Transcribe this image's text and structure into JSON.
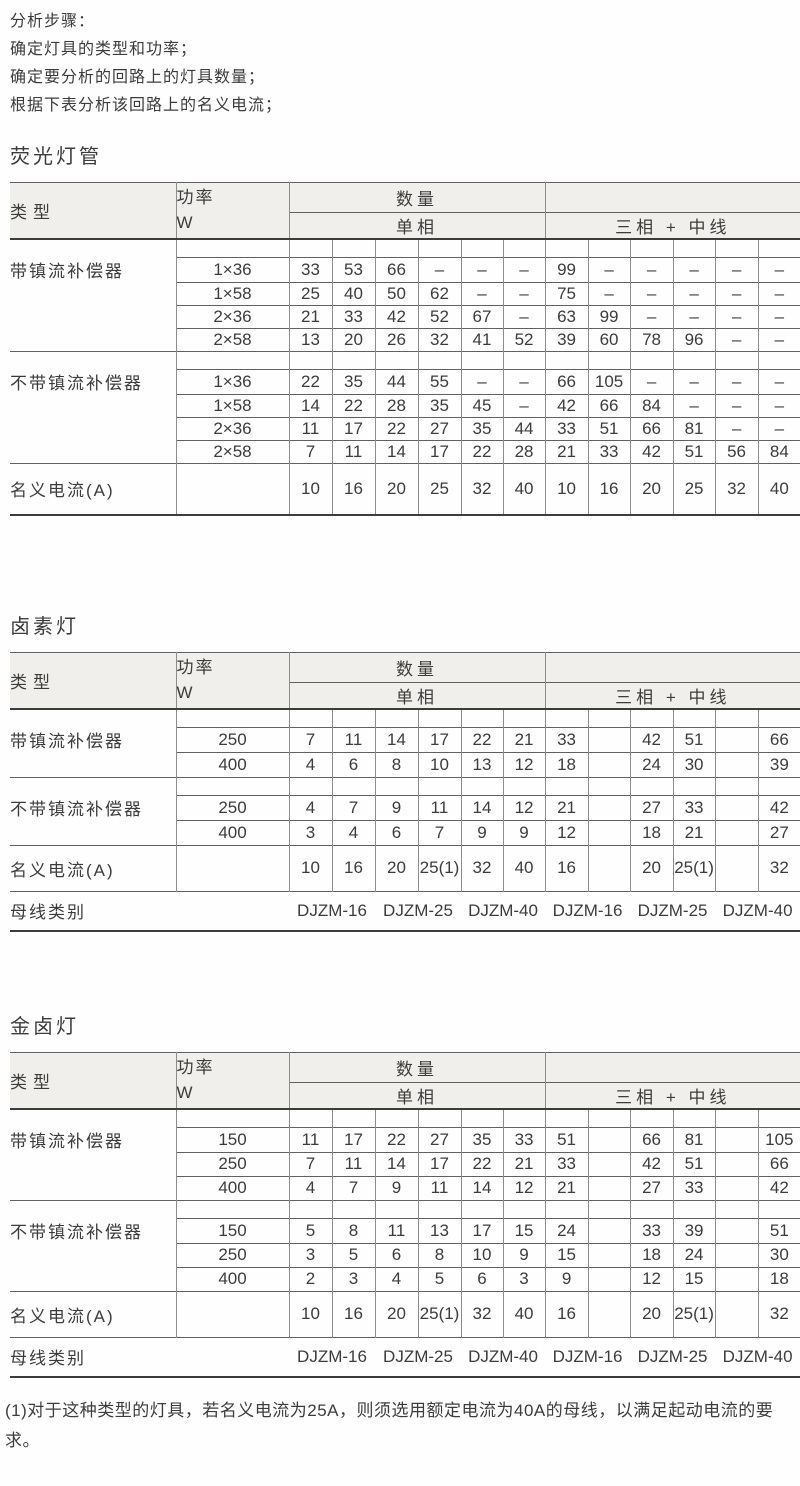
{
  "intro": {
    "lines": [
      "分析步骤：",
      "确定灯具的类型和功率；",
      "确定要分析的回路上的灯具数量；",
      "根据下表分析该回路上的名义电流；"
    ]
  },
  "labels": {
    "type": "类型",
    "power": "功率",
    "power_unit": "W",
    "quantity": "数量",
    "single_phase": "单相",
    "three_phase": "三相 + 中线",
    "nominal_current": "名义电流(A)",
    "busbar_class": "母线类别"
  },
  "tables": [
    {
      "title": "荧光灯管",
      "groups": [
        {
          "name": "带镇流补偿器",
          "rows": [
            {
              "power": "1×36",
              "single": [
                "33",
                "53",
                "66",
                "–",
                "–",
                "–"
              ],
              "three": [
                "99",
                "–",
                "–",
                "–",
                "–",
                "–"
              ]
            },
            {
              "power": "1×58",
              "single": [
                "25",
                "40",
                "50",
                "62",
                "–",
                "–"
              ],
              "three": [
                "75",
                "–",
                "–",
                "–",
                "–",
                "–"
              ]
            },
            {
              "power": "2×36",
              "single": [
                "21",
                "33",
                "42",
                "52",
                "67",
                "–"
              ],
              "three": [
                "63",
                "99",
                "–",
                "–",
                "–",
                "–"
              ]
            },
            {
              "power": "2×58",
              "single": [
                "13",
                "20",
                "26",
                "32",
                "41",
                "52"
              ],
              "three": [
                "39",
                "60",
                "78",
                "96",
                "–",
                "–"
              ]
            }
          ]
        },
        {
          "name": "不带镇流补偿器",
          "rows": [
            {
              "power": "1×36",
              "single": [
                "22",
                "35",
                "44",
                "55",
                "–",
                "–"
              ],
              "three": [
                "66",
                "105",
                "–",
                "–",
                "–",
                "–"
              ]
            },
            {
              "power": "1×58",
              "single": [
                "14",
                "22",
                "28",
                "35",
                "45",
                "–"
              ],
              "three": [
                "42",
                "66",
                "84",
                "–",
                "–",
                "–"
              ]
            },
            {
              "power": "2×36",
              "single": [
                "11",
                "17",
                "22",
                "27",
                "35",
                "44"
              ],
              "three": [
                "33",
                "51",
                "66",
                "81",
                "–",
                "–"
              ]
            },
            {
              "power": "2×58",
              "single": [
                "7",
                "11",
                "14",
                "17",
                "22",
                "28"
              ],
              "three": [
                "21",
                "33",
                "42",
                "51",
                "56",
                "84"
              ]
            }
          ]
        }
      ],
      "nominal": {
        "single": [
          "10",
          "16",
          "20",
          "25",
          "32",
          "40"
        ],
        "three": [
          "10",
          "16",
          "20",
          "25",
          "32",
          "40"
        ]
      },
      "busbar": null
    },
    {
      "title": "卤素灯",
      "groups": [
        {
          "name": "带镇流补偿器",
          "rows": [
            {
              "power": "250",
              "single": [
                "7",
                "11",
                "14",
                "17",
                "22",
                "21"
              ],
              "three": [
                "33",
                "",
                "42",
                "51",
                "",
                "66"
              ]
            },
            {
              "power": "400",
              "single": [
                "4",
                "6",
                "8",
                "10",
                "13",
                "12"
              ],
              "three": [
                "18",
                "",
                "24",
                "30",
                "",
                "39"
              ]
            }
          ]
        },
        {
          "name": "不带镇流补偿器",
          "rows": [
            {
              "power": "250",
              "single": [
                "4",
                "7",
                "9",
                "11",
                "14",
                "12"
              ],
              "three": [
                "21",
                "",
                "27",
                "33",
                "",
                "42"
              ]
            },
            {
              "power": "400",
              "single": [
                "3",
                "4",
                "6",
                "7",
                "9",
                "9"
              ],
              "three": [
                "12",
                "",
                "18",
                "21",
                "",
                "27"
              ]
            }
          ]
        }
      ],
      "nominal": {
        "single": [
          "10",
          "16",
          "20",
          "25(1)",
          "32",
          "40"
        ],
        "three": [
          "16",
          "",
          "20",
          "25(1)",
          "",
          "32"
        ]
      },
      "busbar": [
        "DJZM-16",
        "DJZM-25",
        "DJZM-40",
        "DJZM-16",
        "DJZM-25",
        "DJZM-40"
      ]
    },
    {
      "title": "金卤灯",
      "groups": [
        {
          "name": "带镇流补偿器",
          "rows": [
            {
              "power": "150",
              "single": [
                "11",
                "17",
                "22",
                "27",
                "35",
                "33"
              ],
              "three": [
                "51",
                "",
                "66",
                "81",
                "",
                "105"
              ]
            },
            {
              "power": "250",
              "single": [
                "7",
                "11",
                "14",
                "17",
                "22",
                "21"
              ],
              "three": [
                "33",
                "",
                "42",
                "51",
                "",
                "66"
              ]
            },
            {
              "power": "400",
              "single": [
                "4",
                "7",
                "9",
                "11",
                "14",
                "12"
              ],
              "three": [
                "21",
                "",
                "27",
                "33",
                "",
                "42"
              ]
            }
          ]
        },
        {
          "name": "不带镇流补偿器",
          "rows": [
            {
              "power": "150",
              "single": [
                "5",
                "8",
                "11",
                "13",
                "17",
                "15"
              ],
              "three": [
                "24",
                "",
                "33",
                "39",
                "",
                "51"
              ]
            },
            {
              "power": "250",
              "single": [
                "3",
                "5",
                "6",
                "8",
                "10",
                "9"
              ],
              "three": [
                "15",
                "",
                "18",
                "24",
                "",
                "30"
              ]
            },
            {
              "power": "400",
              "single": [
                "2",
                "3",
                "4",
                "5",
                "6",
                "3"
              ],
              "three": [
                "9",
                "",
                "12",
                "15",
                "",
                "18"
              ]
            }
          ]
        }
      ],
      "nominal": {
        "single": [
          "10",
          "16",
          "20",
          "25(1)",
          "32",
          "40"
        ],
        "three": [
          "16",
          "",
          "20",
          "25(1)",
          "",
          "32"
        ]
      },
      "busbar": [
        "DJZM-16",
        "DJZM-25",
        "DJZM-40",
        "DJZM-16",
        "DJZM-25",
        "DJZM-40"
      ]
    }
  ],
  "footnote": "(1)对于这种类型的灯具，若名义电流为25A，则须选用额定电流为40A的母线，以满足起动电流的要求。",
  "colors": {
    "line_thin": "#8c8c8c",
    "line_medium": "#606060",
    "line_thick": "#3c3c3c",
    "header_bg": "#f1efec",
    "text": "#3c3c3c"
  }
}
